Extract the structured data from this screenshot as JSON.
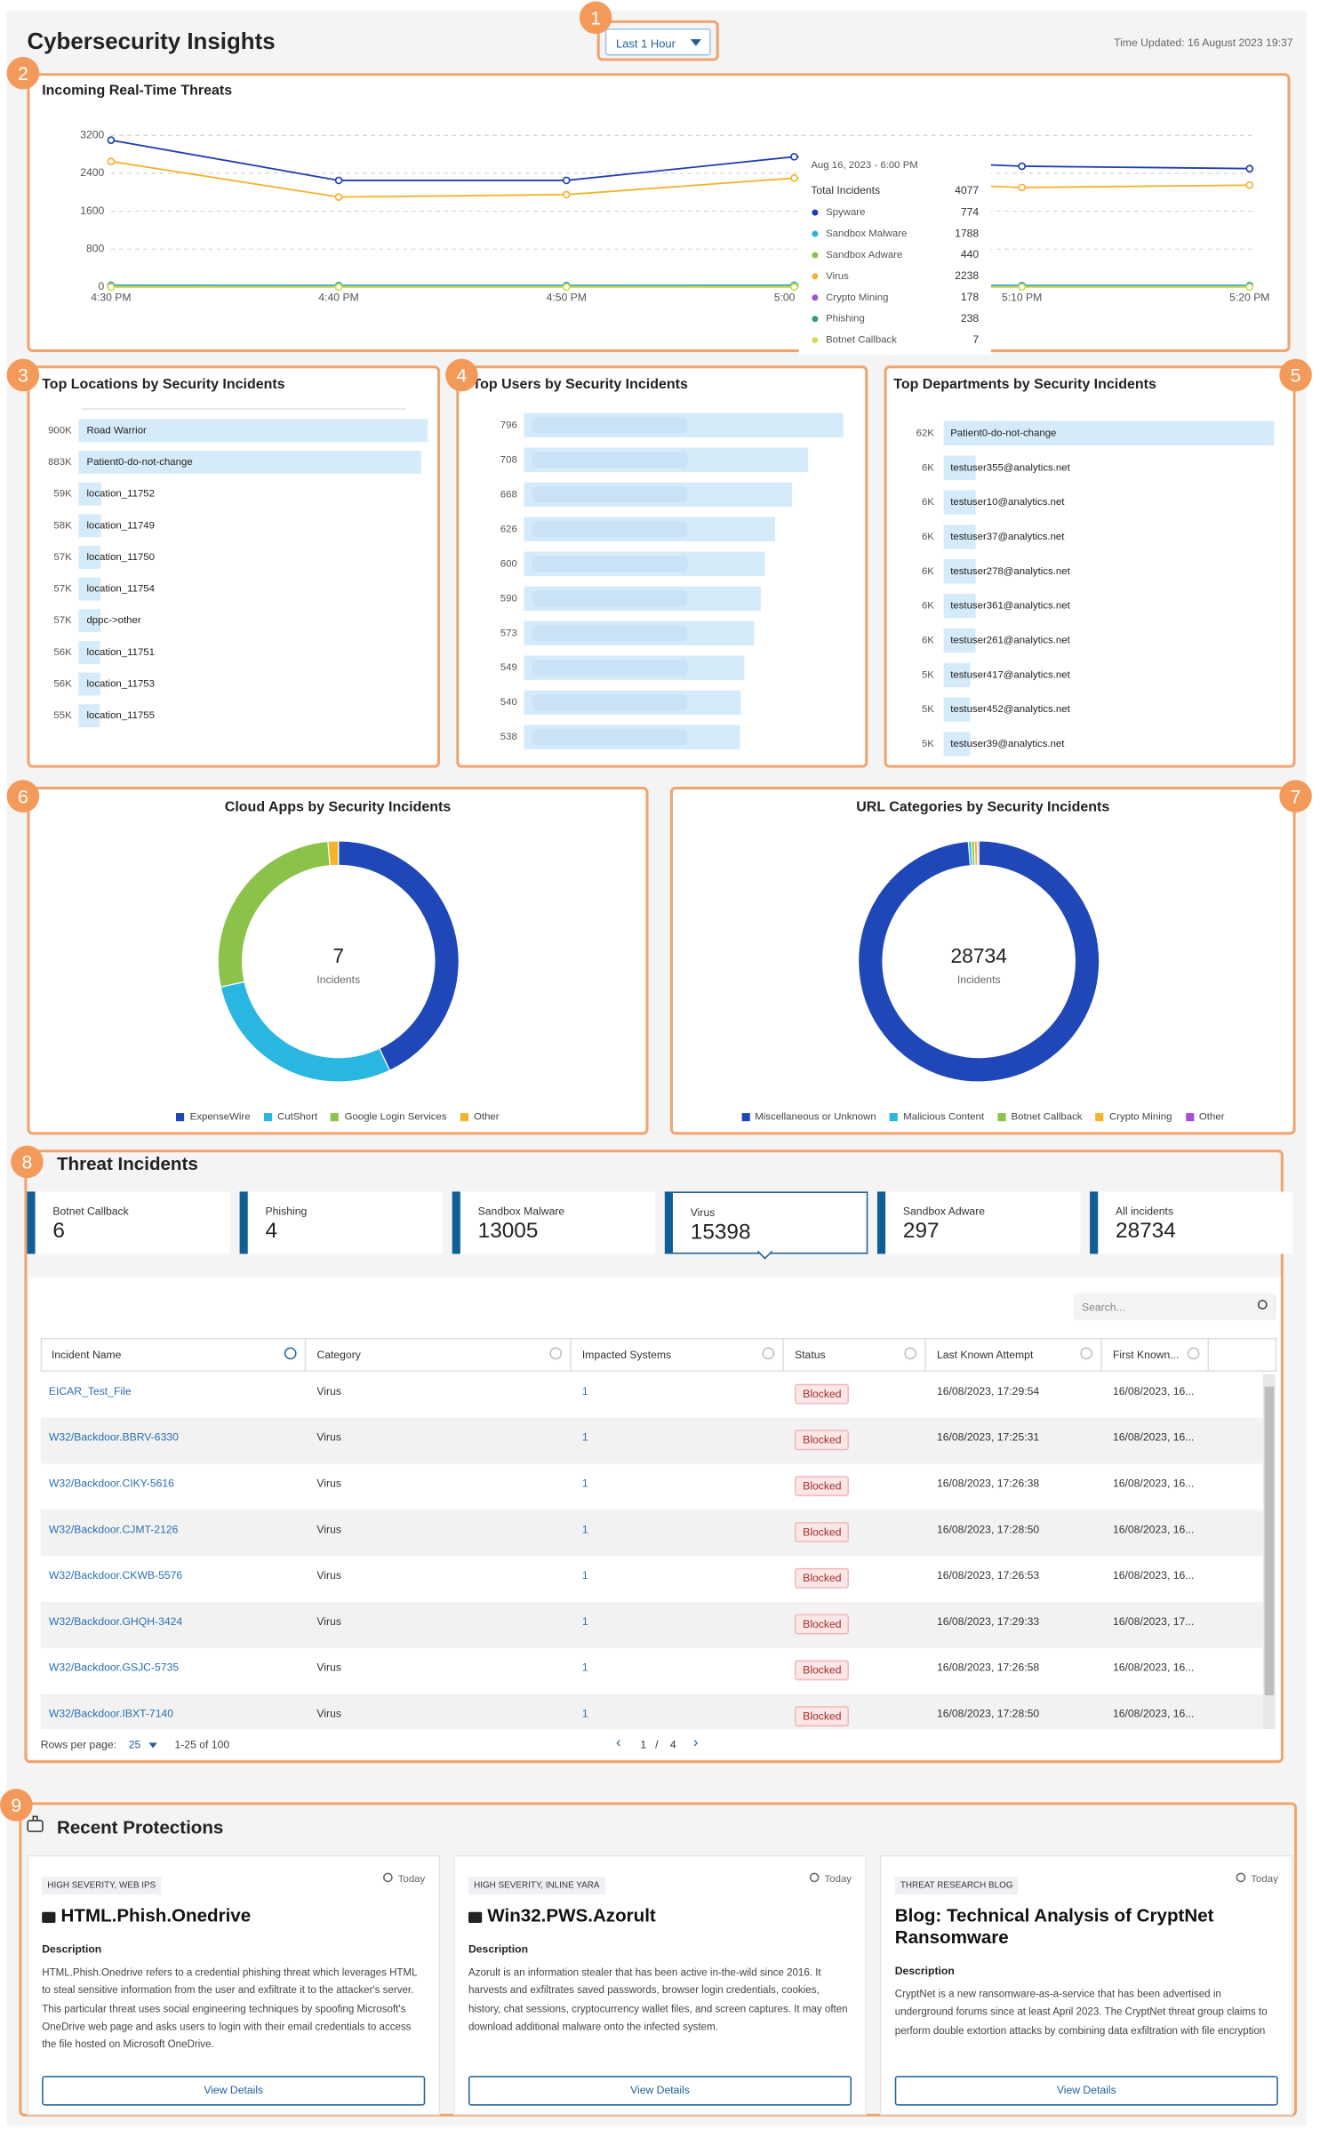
{
  "header": {
    "title": "Cybersecurity Insights",
    "time_range": "Last 1 Hour",
    "updated": "Time Updated: 16 August 2023 19:37"
  },
  "callouts": [
    1,
    2,
    3,
    4,
    5,
    6,
    7,
    8,
    9
  ],
  "threats": {
    "type": "line",
    "title": "Incoming Real-Time Threats",
    "x": [
      "4:30 PM",
      "4:40 PM",
      "4:50 PM",
      "5:00 PM",
      "5:10 PM",
      "5:20 PM"
    ],
    "ylim": [
      0,
      3200
    ],
    "yticks": [
      0,
      800,
      1600,
      2400,
      3200
    ],
    "grid": true,
    "series": [
      {
        "name": "Spyware",
        "color": "#1f3fae",
        "values": [
          3100,
          2250,
          2250,
          2750,
          2550,
          2500
        ]
      },
      {
        "name": "Sandbox Malware",
        "color": "#2bb5dc",
        "values": [
          40,
          35,
          35,
          40,
          35,
          35
        ]
      },
      {
        "name": "Sandbox Adware",
        "color": "#8bc34a",
        "values": [
          20,
          15,
          15,
          20,
          15,
          15
        ]
      },
      {
        "name": "Virus",
        "color": "#f3b32c",
        "values": [
          2650,
          1900,
          1950,
          2300,
          2100,
          2150
        ]
      },
      {
        "name": "Crypto Mining",
        "color": "#a64fd6",
        "values": [
          5,
          5,
          5,
          5,
          5,
          5
        ]
      },
      {
        "name": "Phishing",
        "color": "#2e9a7e",
        "values": [
          5,
          5,
          5,
          5,
          5,
          5
        ]
      },
      {
        "name": "Botnet Callback",
        "color": "#d9dd55",
        "values": [
          0,
          0,
          0,
          0,
          0,
          0
        ]
      }
    ],
    "tooltip": {
      "date": "Aug 16, 2023 - 6:00 PM",
      "total_label": "Total Incidents",
      "total": 4077,
      "values": [
        774,
        1788,
        440,
        2238,
        178,
        238,
        7
      ]
    }
  },
  "locations": {
    "type": "bar",
    "title": "Top Locations by Security Incidents",
    "color": "#d6ebfa",
    "categories": [
      "Road Warrior",
      "Patient0-do-not-change",
      "location_11752",
      "location_11749",
      "location_11750",
      "location_11754",
      "dppc->other",
      "location_11751",
      "location_11753",
      "location_11755"
    ],
    "values": [
      900000,
      883000,
      59000,
      58000,
      57000,
      57000,
      57000,
      56000,
      56000,
      55000
    ],
    "value_labels": [
      "900K",
      "883K",
      "59K",
      "58K",
      "57K",
      "57K",
      "57K",
      "56K",
      "56K",
      "55K"
    ]
  },
  "users": {
    "type": "bar",
    "title": "Top Users by Security Incidents",
    "color": "#d6ebfa",
    "values": [
      796,
      708,
      668,
      626,
      600,
      590,
      573,
      549,
      540,
      538
    ]
  },
  "departments": {
    "type": "bar",
    "title": "Top Departments by Security Incidents",
    "color": "#d6ebfa",
    "categories": [
      "Patient0-do-not-change",
      "testuser355@analytics.net",
      "testuser10@analytics.net",
      "testuser37@analytics.net",
      "testuser278@analytics.net",
      "testuser361@analytics.net",
      "testuser261@analytics.net",
      "testuser417@analytics.net",
      "testuser452@analytics.net",
      "testuser39@analytics.net"
    ],
    "values": [
      62000,
      6000,
      6000,
      6000,
      6000,
      6000,
      6000,
      5000,
      5000,
      5000
    ],
    "value_labels": [
      "62K",
      "6K",
      "6K",
      "6K",
      "6K",
      "6K",
      "6K",
      "5K",
      "5K",
      "5K"
    ]
  },
  "cloud_apps": {
    "type": "pie",
    "title": "Cloud Apps by Security Incidents",
    "center_value": 7,
    "center_label": "Incidents",
    "categories": [
      "ExpenseWire",
      "CutShort",
      "Google Login Services",
      "Other"
    ],
    "values": [
      43,
      28.6,
      27,
      1.4
    ],
    "colors": [
      "#1f47b8",
      "#29b6e0",
      "#8bc34a",
      "#f3b32c"
    ]
  },
  "url_categories": {
    "type": "pie",
    "title": "URL Categories by Security Incidents",
    "center_value": 28734,
    "center_label": "Incidents",
    "categories": [
      "Miscellaneous or Unknown",
      "Malicious Content",
      "Botnet Callback",
      "Crypto Mining",
      "Other"
    ],
    "values": [
      98.6,
      0.4,
      0.4,
      0.4,
      0.2
    ],
    "colors": [
      "#1f47b8",
      "#29b6e0",
      "#8bc34a",
      "#f3b32c",
      "#a64fd6"
    ]
  },
  "incidents": {
    "title": "Threat Incidents",
    "active": 3,
    "tabs": [
      {
        "label": "Botnet Callback",
        "count": 6
      },
      {
        "label": "Phishing",
        "count": 4
      },
      {
        "label": "Sandbox Malware",
        "count": 13005
      },
      {
        "label": "Virus",
        "count": 15398
      },
      {
        "label": "Sandbox Adware",
        "count": 297
      },
      {
        "label": "All incidents",
        "count": 28734
      }
    ]
  },
  "table": {
    "search": "Search...",
    "columns": [
      "Incident Name",
      "Category",
      "Impacted Systems",
      "Status",
      "Last Known Attempt",
      "First Known..."
    ],
    "rows": [
      [
        "EICAR_Test_File",
        "Virus",
        1,
        "Blocked",
        "16/08/2023, 17:29:54",
        "16/08/2023, 16..."
      ],
      [
        "W32/Backdoor.BBRV-6330",
        "Virus",
        1,
        "Blocked",
        "16/08/2023, 17:25:31",
        "16/08/2023, 16..."
      ],
      [
        "W32/Backdoor.CIKY-5616",
        "Virus",
        1,
        "Blocked",
        "16/08/2023, 17:26:38",
        "16/08/2023, 16..."
      ],
      [
        "W32/Backdoor.CJMT-2126",
        "Virus",
        1,
        "Blocked",
        "16/08/2023, 17:28:50",
        "16/08/2023, 16..."
      ],
      [
        "W32/Backdoor.CKWB-5576",
        "Virus",
        1,
        "Blocked",
        "16/08/2023, 17:26:53",
        "16/08/2023, 16..."
      ],
      [
        "W32/Backdoor.GHQH-3424",
        "Virus",
        1,
        "Blocked",
        "16/08/2023, 17:29:33",
        "16/08/2023, 17..."
      ],
      [
        "W32/Backdoor.GSJC-5735",
        "Virus",
        1,
        "Blocked",
        "16/08/2023, 17:26:58",
        "16/08/2023, 16..."
      ],
      [
        "W32/Backdoor.IBXT-7140",
        "Virus",
        1,
        "Blocked",
        "16/08/2023, 17:28:50",
        "16/08/2023, 16..."
      ]
    ],
    "rows_per_page_label": "Rows per page:",
    "rows_per_page": 25,
    "range": "1-25 of 100",
    "page": 1,
    "separator": "/",
    "pages": 4
  },
  "recent": {
    "title": "Recent Protections",
    "cards": [
      {
        "tag": "HIGH SEVERITY, WEB IPS",
        "time": "Today",
        "title": "HTML.Phish.Onedrive",
        "heading": "Description",
        "text": "HTML.Phish.Onedrive refers to a credential phishing threat which leverages HTML to steal sensitive information from the user and exfiltrate it to the attacker's server. This particular threat uses social engineering techniques by spoofing Microsoft's OneDrive web page and asks users to login with their email credentials to access the file hosted on Microsoft OneDrive.",
        "button": "View Details"
      },
      {
        "tag": "HIGH SEVERITY, INLINE YARA",
        "time": "Today",
        "title": "Win32.PWS.Azorult",
        "heading": "Description",
        "text": "Azorult is an information stealer that has been active in-the-wild since 2016. It harvests and exfiltrates saved passwords, browser login credentials, cookies, history, chat sessions, cryptocurrency wallet files, and screen captures. It may often download additional malware onto the infected system.",
        "button": "View Details"
      },
      {
        "tag": "THREAT RESEARCH BLOG",
        "time": "Today",
        "title": "Blog: Technical Analysis of CryptNet Ransomware",
        "heading": "Description",
        "text": "CryptNet is a new ransomware-as-a-service that has been advertised in underground forums since at least April 2023. The CryptNet threat group claims to perform double extortion attacks by combining data exfiltration with file encryption",
        "button": "View Details"
      }
    ]
  }
}
